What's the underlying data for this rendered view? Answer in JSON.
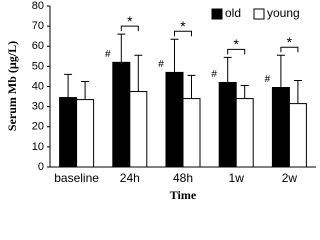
{
  "chart_data": {
    "type": "bar",
    "x_label": "Time",
    "y_label": "Serum Mb (μg/L)",
    "categories": [
      "baseline",
      "24h",
      "48h",
      "1w",
      "2w"
    ],
    "series": [
      {
        "name": "old",
        "color": "#000000",
        "values": [
          34.5,
          52,
          47,
          42,
          39.5
        ],
        "errors": [
          11.5,
          14,
          16.5,
          12.5,
          16
        ]
      },
      {
        "name": "young",
        "color": "#ffffff",
        "values": [
          33.5,
          37.5,
          34,
          34,
          31.5
        ],
        "errors": [
          9,
          18,
          11.5,
          6.5,
          11.5
        ]
      }
    ],
    "old_markers": [
      null,
      "#",
      "#",
      "#",
      "#"
    ],
    "pair_markers": [
      null,
      "*",
      "*",
      "*",
      "*"
    ],
    "ylim": [
      0,
      80
    ],
    "yticks": [
      0,
      10,
      20,
      30,
      40,
      50,
      60,
      70,
      80
    ],
    "legend": "top-right",
    "grid": false
  }
}
